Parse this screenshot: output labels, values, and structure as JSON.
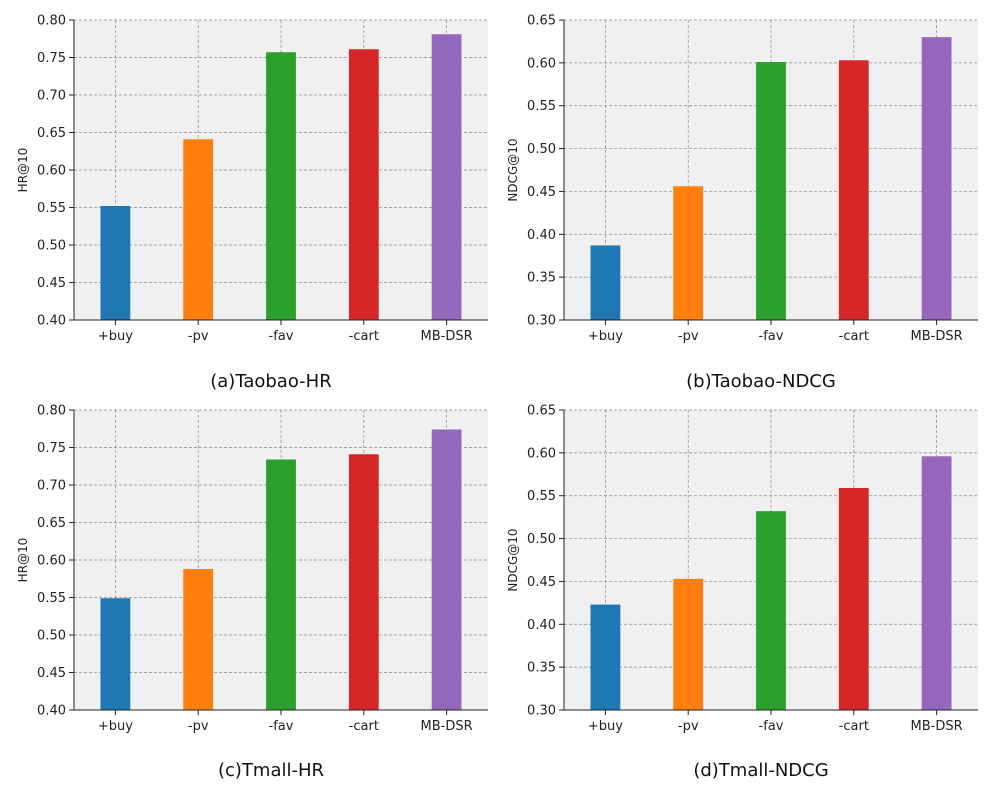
{
  "chart_data": [
    {
      "type": "bar",
      "title": "(a)Taobao-HR",
      "xlabel": "",
      "ylabel": "HR@10",
      "categories": [
        "+buy",
        "-pv",
        "-fav",
        "-cart",
        "MB-DSR"
      ],
      "values": [
        0.552,
        0.641,
        0.757,
        0.761,
        0.781
      ],
      "colors": [
        "#1f77b4",
        "#ff7f0e",
        "#2ca02c",
        "#d62728",
        "#9467bd"
      ],
      "ylim": [
        0.4,
        0.8
      ],
      "yticks": [
        "0.40",
        "0.45",
        "0.50",
        "0.55",
        "0.60",
        "0.65",
        "0.70",
        "0.75",
        "0.80"
      ],
      "grid": true
    },
    {
      "type": "bar",
      "title": "(b)Taobao-NDCG",
      "xlabel": "",
      "ylabel": "NDCG@10",
      "categories": [
        "+buy",
        "-pv",
        "-fav",
        "-cart",
        "MB-DSR"
      ],
      "values": [
        0.387,
        0.456,
        0.601,
        0.603,
        0.63
      ],
      "colors": [
        "#1f77b4",
        "#ff7f0e",
        "#2ca02c",
        "#d62728",
        "#9467bd"
      ],
      "ylim": [
        0.3,
        0.65
      ],
      "yticks": [
        "0.30",
        "0.35",
        "0.40",
        "0.45",
        "0.50",
        "0.55",
        "0.60",
        "0.65"
      ],
      "grid": true
    },
    {
      "type": "bar",
      "title": "(c)Tmall-HR",
      "xlabel": "",
      "ylabel": "HR@10",
      "categories": [
        "+buy",
        "-pv",
        "-fav",
        "-cart",
        "MB-DSR"
      ],
      "values": [
        0.549,
        0.588,
        0.734,
        0.741,
        0.774
      ],
      "colors": [
        "#1f77b4",
        "#ff7f0e",
        "#2ca02c",
        "#d62728",
        "#9467bd"
      ],
      "ylim": [
        0.4,
        0.8
      ],
      "yticks": [
        "0.40",
        "0.45",
        "0.50",
        "0.55",
        "0.60",
        "0.65",
        "0.70",
        "0.75",
        "0.80"
      ],
      "grid": true
    },
    {
      "type": "bar",
      "title": "(d)Tmall-NDCG",
      "xlabel": "",
      "ylabel": "NDCG@10",
      "categories": [
        "+buy",
        "-pv",
        "-fav",
        "-cart",
        "MB-DSR"
      ],
      "values": [
        0.423,
        0.453,
        0.532,
        0.559,
        0.596
      ],
      "colors": [
        "#1f77b4",
        "#ff7f0e",
        "#2ca02c",
        "#d62728",
        "#9467bd"
      ],
      "ylim": [
        0.3,
        0.65
      ],
      "yticks": [
        "0.30",
        "0.35",
        "0.40",
        "0.45",
        "0.50",
        "0.55",
        "0.60",
        "0.65"
      ],
      "grid": true
    }
  ]
}
